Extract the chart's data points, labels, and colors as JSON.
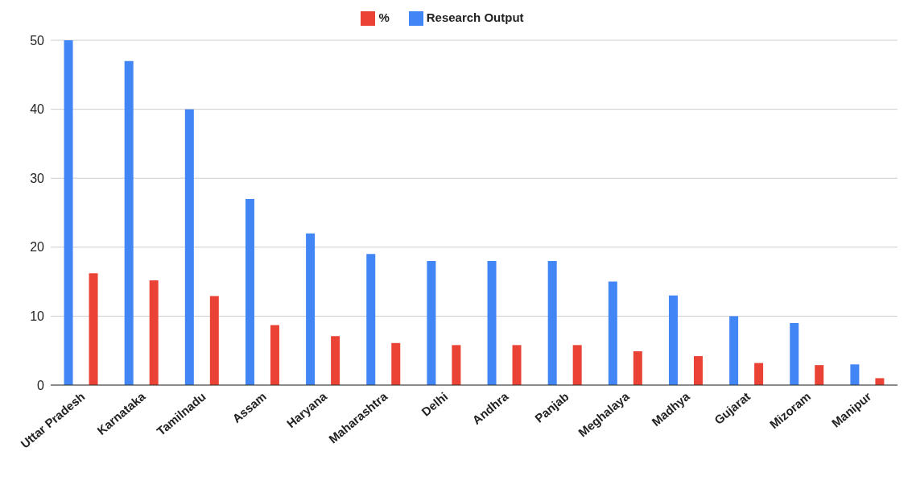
{
  "chart_data": {
    "type": "bar",
    "categories": [
      "Uttar Pradesh",
      "Karnataka",
      "Tamilnadu",
      "Assam",
      "Haryana",
      "Maharashtra",
      "Delhi",
      "Andhra",
      "Panjab",
      "Meghalaya",
      "Madhya",
      "Gujarat",
      "Mizoram",
      "Manipur"
    ],
    "series": [
      {
        "name": "Research Output",
        "color": "#4285f4",
        "values": [
          50,
          47,
          40,
          27,
          22,
          19,
          18,
          18,
          18,
          15,
          13,
          10,
          9,
          3
        ]
      },
      {
        "name": "%",
        "color": "#ea4335",
        "values": [
          16.2,
          15.2,
          12.9,
          8.7,
          7.1,
          6.1,
          5.8,
          5.8,
          5.8,
          4.9,
          4.2,
          3.2,
          2.9,
          1.0
        ]
      }
    ],
    "ylim": [
      0,
      50
    ],
    "yticks": [
      0,
      10,
      20,
      30,
      40,
      50
    ],
    "grid": "y",
    "legend": "top"
  }
}
